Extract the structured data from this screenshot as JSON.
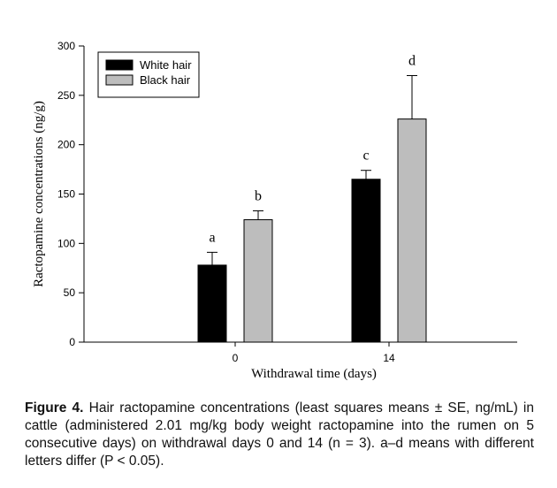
{
  "chart_data": {
    "type": "bar",
    "title": "",
    "xlabel": "Withdrawal time (days)",
    "ylabel": "Ractopamine concentrations (ng/g)",
    "categories": [
      "0",
      "14"
    ],
    "series": [
      {
        "name": "White hair",
        "color": "#000000",
        "values": [
          78,
          165
        ],
        "errors": [
          13,
          9
        ],
        "letters": [
          "a",
          "c"
        ]
      },
      {
        "name": "Black hair",
        "color": "#bdbdbd",
        "values": [
          124,
          226
        ],
        "errors": [
          9,
          44
        ],
        "letters": [
          "b",
          "d"
        ]
      }
    ],
    "ylim": [
      0,
      300
    ],
    "yticks": [
      0,
      50,
      100,
      150,
      200,
      250,
      300
    ],
    "grid": false,
    "legend_position": "top-left"
  },
  "caption": {
    "label": "Figure 4.",
    "text": "Hair ractopamine concentrations (least squares means ± SE, ng/mL) in cattle (administered 2.01 mg/kg body weight ractopamine into the rumen on 5 consecutive days) on withdrawal days 0 and 14 (n = 3). a–d means with different letters differ (P < 0.05)."
  }
}
